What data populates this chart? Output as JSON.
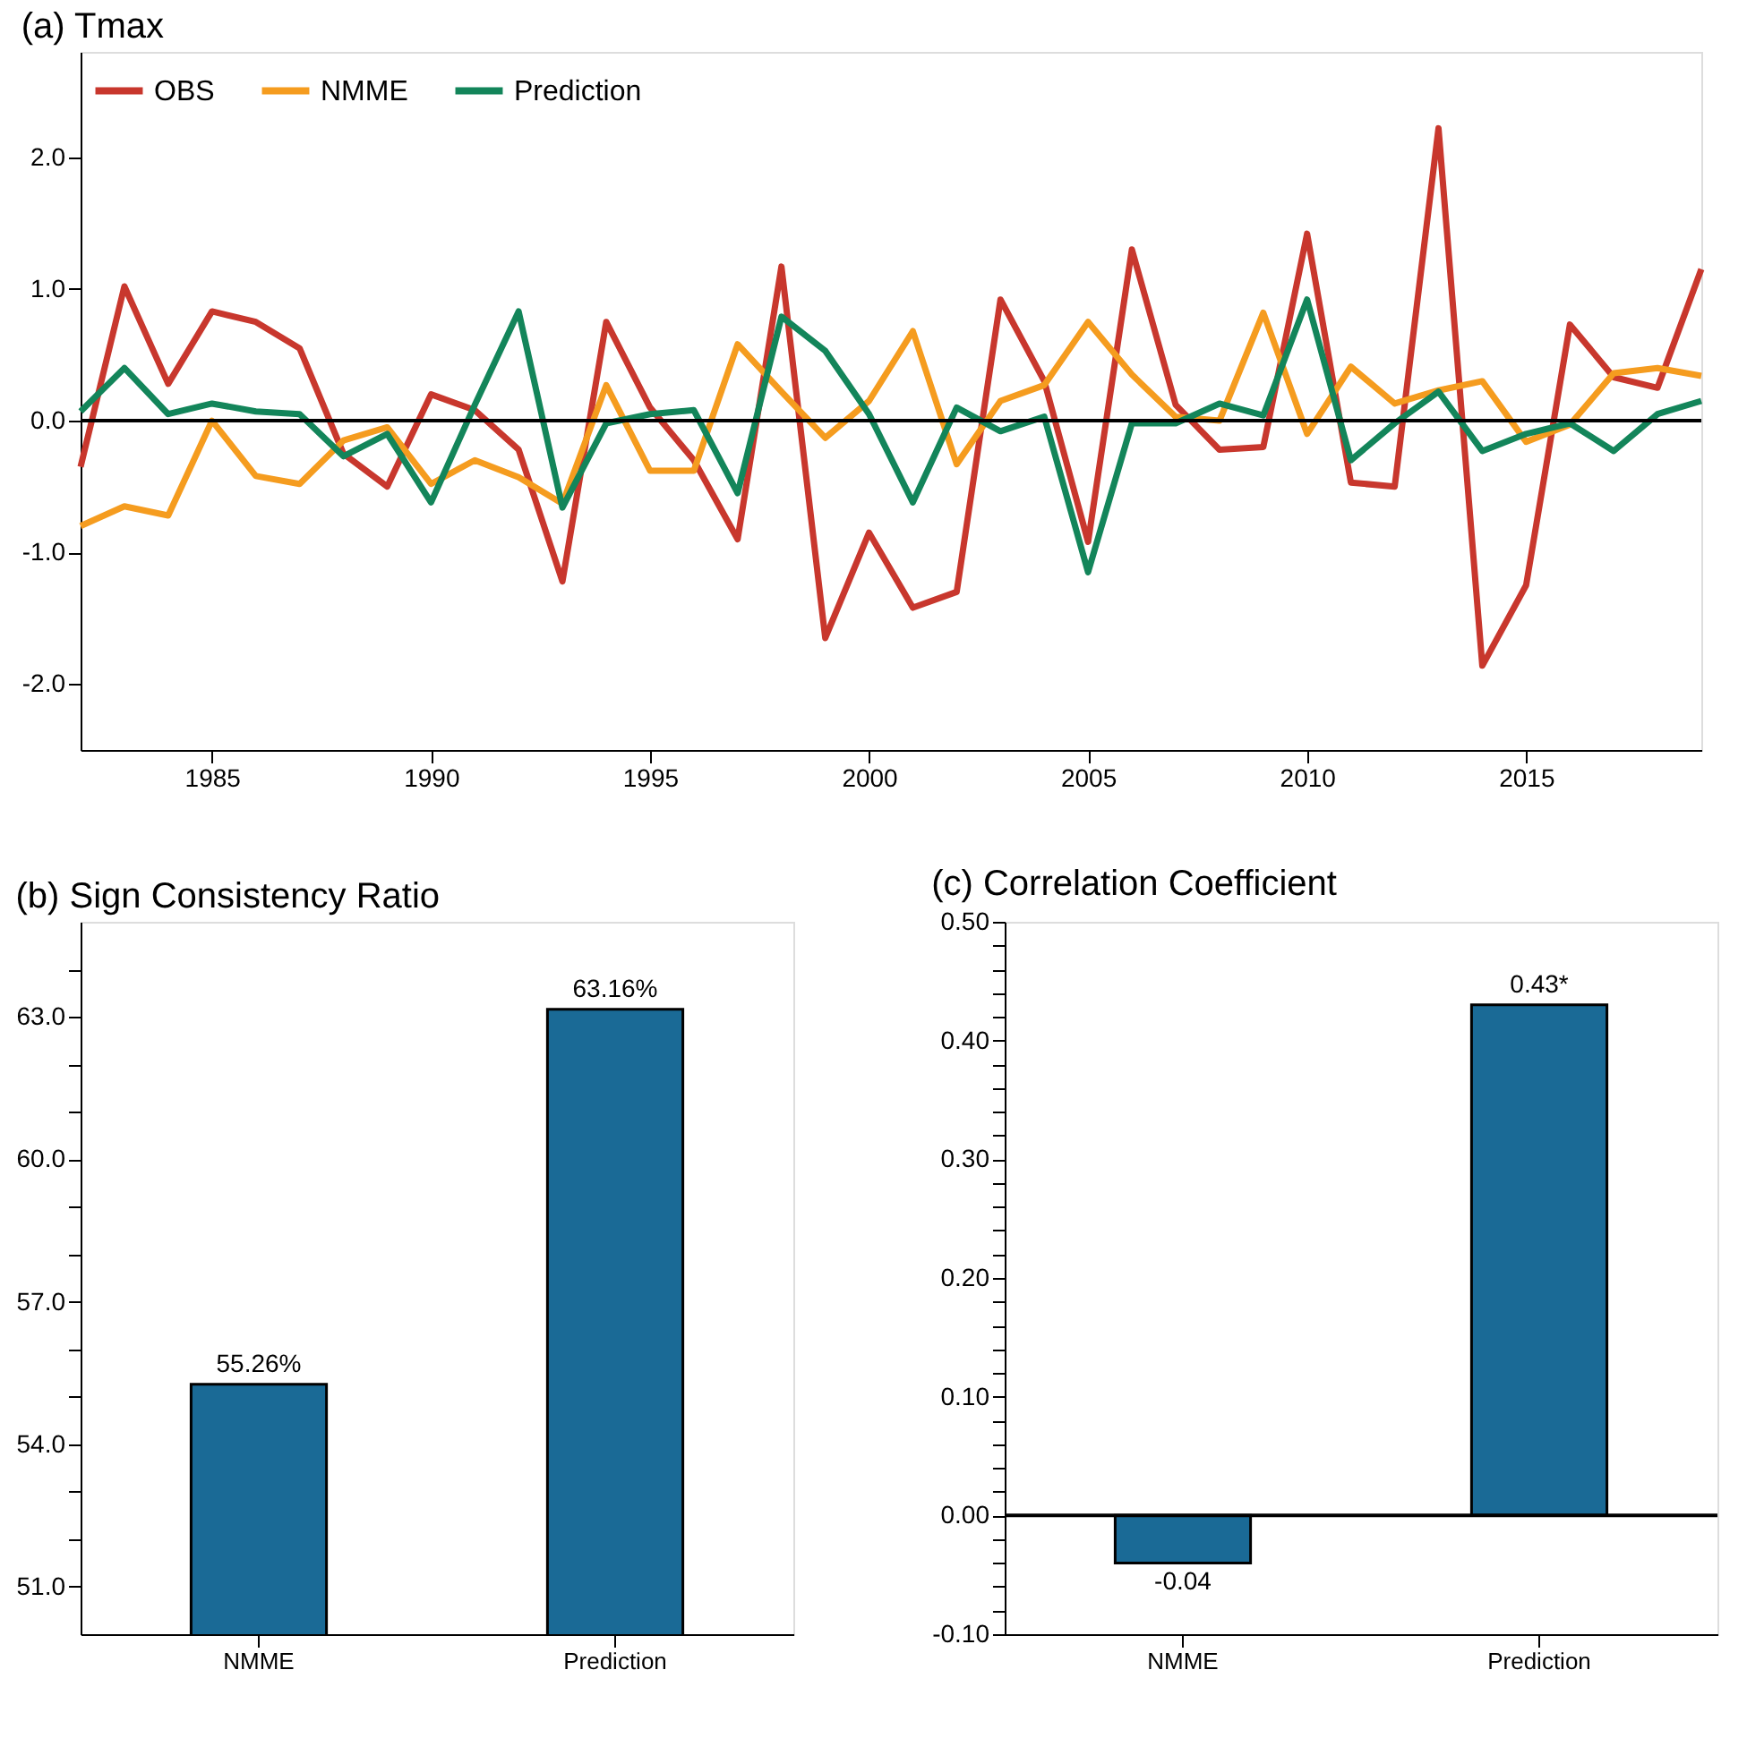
{
  "chart_data": [
    {
      "type": "line",
      "title": "(a) Tmax",
      "xlim": [
        1982,
        2019
      ],
      "xticks": [
        1985,
        1990,
        1995,
        2000,
        2005,
        2010,
        2015
      ],
      "ylim": [
        -2.5,
        2.8
      ],
      "yticks": [
        {
          "value": -2,
          "label": "-2.0"
        },
        {
          "value": -1,
          "label": "-1.0"
        },
        {
          "value": 0,
          "label": "0.0"
        },
        {
          "value": 1,
          "label": "1.0"
        },
        {
          "value": 2,
          "label": "2.0"
        }
      ],
      "x": [
        1982,
        1983,
        1984,
        1985,
        1986,
        1987,
        1988,
        1989,
        1990,
        1991,
        1992,
        1993,
        1994,
        1995,
        1996,
        1997,
        1998,
        1999,
        2000,
        2001,
        2002,
        2003,
        2004,
        2005,
        2006,
        2007,
        2008,
        2009,
        2010,
        2011,
        2012,
        2013,
        2014,
        2015,
        2016,
        2017,
        2018,
        2019
      ],
      "series": [
        {
          "name": "OBS",
          "color": "#c8372d",
          "values": [
            -0.35,
            1.02,
            0.28,
            0.83,
            0.75,
            0.55,
            -0.25,
            -0.5,
            0.2,
            0.08,
            -0.22,
            -1.22,
            0.75,
            0.1,
            -0.3,
            -0.9,
            1.17,
            -1.65,
            -0.85,
            -1.42,
            -1.3,
            0.92,
            0.3,
            -0.92,
            1.3,
            0.12,
            -0.22,
            -0.2,
            1.42,
            -0.47,
            -0.5,
            2.22,
            -1.86,
            -1.25,
            0.73,
            0.33,
            0.25,
            1.15
          ]
        },
        {
          "name": "NMME",
          "color": "#f59c1f",
          "values": [
            -0.8,
            -0.65,
            -0.72,
            0.0,
            -0.42,
            -0.48,
            -0.15,
            -0.05,
            -0.48,
            -0.3,
            -0.43,
            -0.63,
            0.27,
            -0.38,
            -0.38,
            0.58,
            0.22,
            -0.13,
            0.15,
            0.68,
            -0.33,
            0.15,
            0.27,
            0.75,
            0.35,
            0.03,
            0.0,
            0.82,
            -0.1,
            0.41,
            0.13,
            0.23,
            0.3,
            -0.16,
            -0.03,
            0.36,
            0.4,
            0.34
          ]
        },
        {
          "name": "Prediction",
          "color": "#13855a",
          "values": [
            0.07,
            0.4,
            0.05,
            0.13,
            0.07,
            0.05,
            -0.27,
            -0.1,
            -0.62,
            0.12,
            0.83,
            -0.66,
            -0.02,
            0.05,
            0.08,
            -0.55,
            0.79,
            0.53,
            0.05,
            -0.62,
            0.1,
            -0.08,
            0.03,
            -1.15,
            -0.02,
            -0.02,
            0.13,
            0.04,
            0.92,
            -0.3,
            -0.02,
            0.22,
            -0.23,
            -0.1,
            -0.02,
            -0.23,
            0.05,
            0.15
          ]
        }
      ],
      "ref_lines": [
        {
          "axis": "y",
          "value": 0,
          "color": "#000000"
        }
      ],
      "legend": "top left",
      "grid": false,
      "line_style": "solid",
      "marker": "none"
    },
    {
      "type": "bar",
      "title": "(b) Sign Consistency Ratio",
      "categories": [
        "NMME",
        "Prediction"
      ],
      "values": [
        55.26,
        63.16
      ],
      "color": "#1a6a96",
      "value_labels": [
        "55.26%",
        "63.16%"
      ],
      "ylim": [
        50,
        65
      ],
      "yticks": [
        {
          "value": 51,
          "label": "51.0"
        },
        {
          "value": 52,
          "label": null
        },
        {
          "value": 53,
          "label": null
        },
        {
          "value": 54,
          "label": "54.0"
        },
        {
          "value": 55,
          "label": null
        },
        {
          "value": 56,
          "label": null
        },
        {
          "value": 57,
          "label": "57.0"
        },
        {
          "value": 58,
          "label": null
        },
        {
          "value": 59,
          "label": null
        },
        {
          "value": 60,
          "label": "60.0"
        },
        {
          "value": 61,
          "label": null
        },
        {
          "value": 62,
          "label": null
        },
        {
          "value": 63,
          "label": "63.0"
        },
        {
          "value": 64,
          "label": null
        }
      ],
      "grid": false
    },
    {
      "type": "bar",
      "title": "(c) Correlation Coefficient",
      "categories": [
        "NMME",
        "Prediction"
      ],
      "values": [
        -0.04,
        0.43
      ],
      "color": "#1a6a96",
      "value_labels": [
        "-0.04",
        "0.43*"
      ],
      "ylim": [
        -0.1,
        0.5
      ],
      "yticks": [
        {
          "value": -0.1,
          "label": "-0.10"
        },
        {
          "value": -0.08,
          "label": null
        },
        {
          "value": -0.06,
          "label": null
        },
        {
          "value": -0.04,
          "label": null
        },
        {
          "value": -0.02,
          "label": null
        },
        {
          "value": 0,
          "label": "0.00"
        },
        {
          "value": 0.02,
          "label": null
        },
        {
          "value": 0.04,
          "label": null
        },
        {
          "value": 0.06,
          "label": null
        },
        {
          "value": 0.08,
          "label": null
        },
        {
          "value": 0.1,
          "label": "0.10"
        },
        {
          "value": 0.12,
          "label": null
        },
        {
          "value": 0.14,
          "label": null
        },
        {
          "value": 0.16,
          "label": null
        },
        {
          "value": 0.18,
          "label": null
        },
        {
          "value": 0.2,
          "label": "0.20"
        },
        {
          "value": 0.22,
          "label": null
        },
        {
          "value": 0.24,
          "label": null
        },
        {
          "value": 0.26,
          "label": null
        },
        {
          "value": 0.28,
          "label": null
        },
        {
          "value": 0.3,
          "label": "0.30"
        },
        {
          "value": 0.32,
          "label": null
        },
        {
          "value": 0.34,
          "label": null
        },
        {
          "value": 0.36,
          "label": null
        },
        {
          "value": 0.38,
          "label": null
        },
        {
          "value": 0.4,
          "label": "0.40"
        },
        {
          "value": 0.42,
          "label": null
        },
        {
          "value": 0.44,
          "label": null
        },
        {
          "value": 0.46,
          "label": null
        },
        {
          "value": 0.48,
          "label": null
        },
        {
          "value": 0.5,
          "label": "0.50"
        }
      ],
      "ref_lines": [
        {
          "axis": "y",
          "value": 0,
          "color": "#000000"
        }
      ],
      "grid": false
    }
  ]
}
